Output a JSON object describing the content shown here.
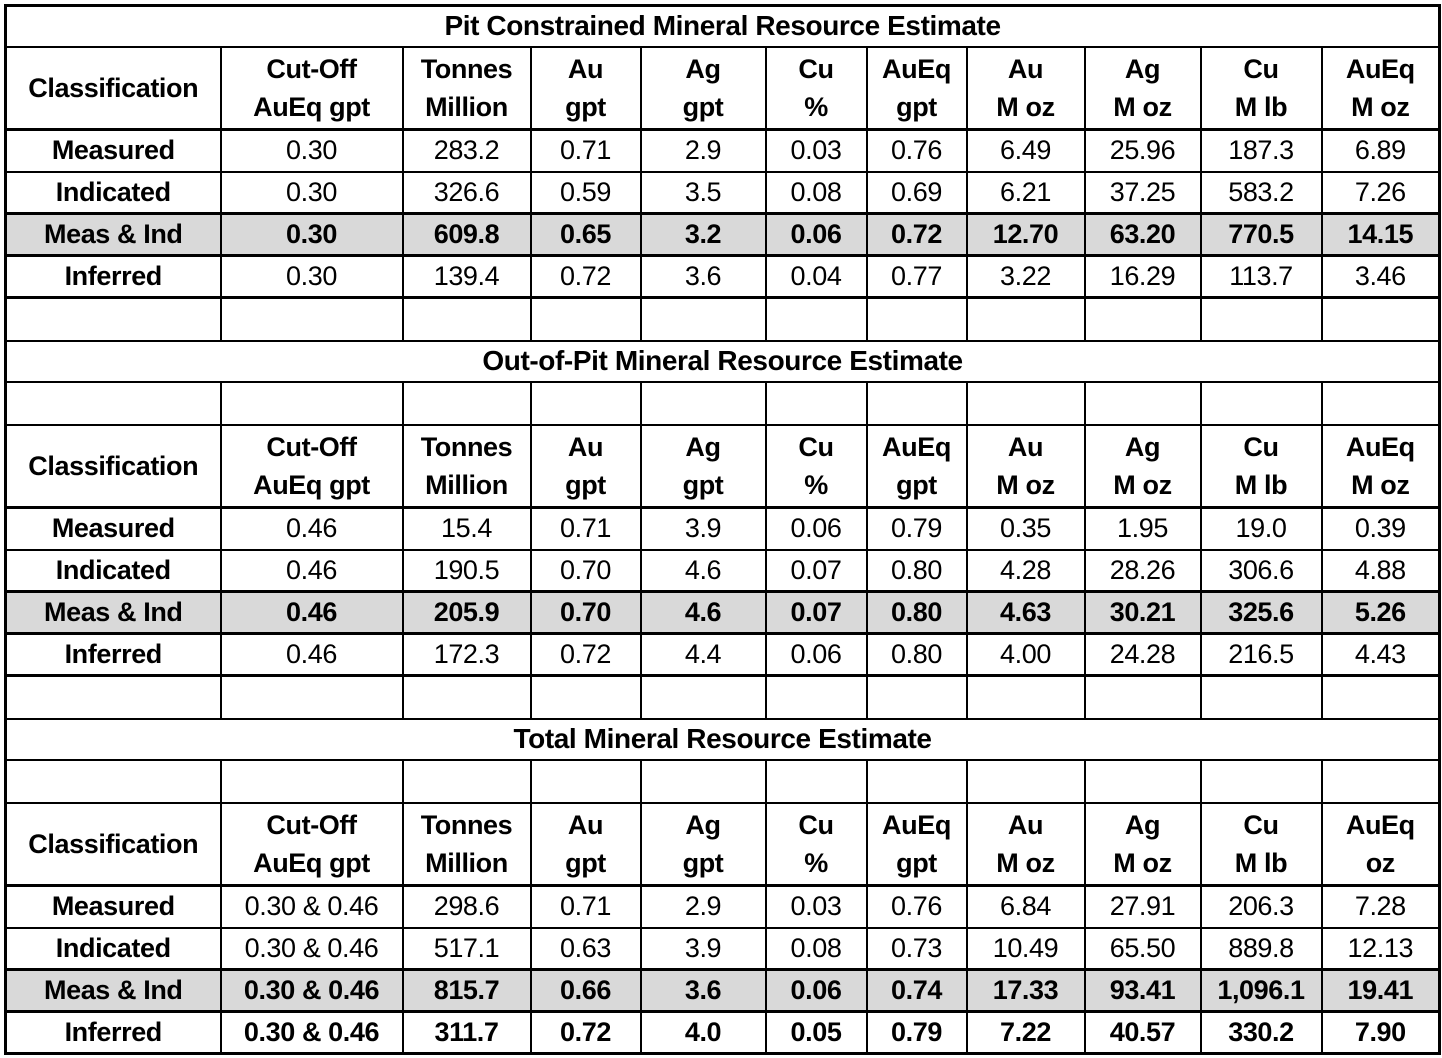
{
  "styles": {
    "background": "#ffffff",
    "grid_color": "#000000",
    "text_color": "#000000",
    "shaded_row_color": "#d9d9d9"
  },
  "tables": [
    {
      "title": "Pit Constrained Mineral Resource Estimate",
      "spacer_before": false,
      "spacer_after_title": false,
      "header": [
        {
          "lines": [
            "Classification"
          ]
        },
        {
          "lines": [
            "Cut-Off",
            "AuEq gpt"
          ]
        },
        {
          "lines": [
            "Tonnes",
            "Million"
          ]
        },
        {
          "lines": [
            "Au",
            "gpt"
          ]
        },
        {
          "lines": [
            "Ag",
            "gpt"
          ]
        },
        {
          "lines": [
            "Cu",
            "%"
          ]
        },
        {
          "lines": [
            "AuEq",
            "gpt"
          ]
        },
        {
          "lines": [
            "Au",
            "M oz"
          ]
        },
        {
          "lines": [
            "Ag",
            "M oz"
          ]
        },
        {
          "lines": [
            "Cu",
            "M lb"
          ]
        },
        {
          "lines": [
            "AuEq",
            "M oz"
          ]
        }
      ],
      "rows": [
        {
          "label": "Measured",
          "values": [
            "0.30",
            "283.2",
            "0.71",
            "2.9",
            "0.03",
            "0.76",
            "6.49",
            "25.96",
            "187.3",
            "6.89"
          ],
          "shaded": false,
          "bold": false
        },
        {
          "label": "Indicated",
          "values": [
            "0.30",
            "326.6",
            "0.59",
            "3.5",
            "0.08",
            "0.69",
            "6.21",
            "37.25",
            "583.2",
            "7.26"
          ],
          "shaded": false,
          "bold": false
        },
        {
          "label": "Meas & Ind",
          "values": [
            "0.30",
            "609.8",
            "0.65",
            "3.2",
            "0.06",
            "0.72",
            "12.70",
            "63.20",
            "770.5",
            "14.15"
          ],
          "shaded": true,
          "bold": true
        },
        {
          "label": "Inferred",
          "values": [
            "0.30",
            "139.4",
            "0.72",
            "3.6",
            "0.04",
            "0.77",
            "3.22",
            "16.29",
            "113.7",
            "3.46"
          ],
          "shaded": false,
          "bold": false
        }
      ]
    },
    {
      "title": "Out-of-Pit Mineral Resource Estimate",
      "spacer_before": true,
      "spacer_after_title": true,
      "header": [
        {
          "lines": [
            "Classification"
          ]
        },
        {
          "lines": [
            "Cut-Off",
            "AuEq gpt"
          ]
        },
        {
          "lines": [
            "Tonnes",
            "Million"
          ]
        },
        {
          "lines": [
            "Au",
            "gpt"
          ]
        },
        {
          "lines": [
            "Ag",
            "gpt"
          ]
        },
        {
          "lines": [
            "Cu",
            "%"
          ]
        },
        {
          "lines": [
            "AuEq",
            "gpt"
          ]
        },
        {
          "lines": [
            "Au",
            "M oz"
          ]
        },
        {
          "lines": [
            "Ag",
            "M oz"
          ]
        },
        {
          "lines": [
            "Cu",
            "M lb"
          ]
        },
        {
          "lines": [
            "AuEq",
            "M oz"
          ]
        }
      ],
      "rows": [
        {
          "label": "Measured",
          "values": [
            "0.46",
            "15.4",
            "0.71",
            "3.9",
            "0.06",
            "0.79",
            "0.35",
            "1.95",
            "19.0",
            "0.39"
          ],
          "shaded": false,
          "bold": false
        },
        {
          "label": "Indicated",
          "values": [
            "0.46",
            "190.5",
            "0.70",
            "4.6",
            "0.07",
            "0.80",
            "4.28",
            "28.26",
            "306.6",
            "4.88"
          ],
          "shaded": false,
          "bold": false
        },
        {
          "label": "Meas & Ind",
          "values": [
            "0.46",
            "205.9",
            "0.70",
            "4.6",
            "0.07",
            "0.80",
            "4.63",
            "30.21",
            "325.6",
            "5.26"
          ],
          "shaded": true,
          "bold": true
        },
        {
          "label": "Inferred",
          "values": [
            "0.46",
            "172.3",
            "0.72",
            "4.4",
            "0.06",
            "0.80",
            "4.00",
            "24.28",
            "216.5",
            "4.43"
          ],
          "shaded": false,
          "bold": false
        }
      ]
    },
    {
      "title": "Total Mineral Resource Estimate",
      "spacer_before": true,
      "spacer_after_title": true,
      "header": [
        {
          "lines": [
            "Classification"
          ]
        },
        {
          "lines": [
            "Cut-Off",
            "AuEq gpt"
          ]
        },
        {
          "lines": [
            "Tonnes",
            "Million"
          ]
        },
        {
          "lines": [
            "Au",
            "gpt"
          ]
        },
        {
          "lines": [
            "Ag",
            "gpt"
          ]
        },
        {
          "lines": [
            "Cu",
            "%"
          ]
        },
        {
          "lines": [
            "AuEq",
            "gpt"
          ]
        },
        {
          "lines": [
            "Au",
            "M oz"
          ]
        },
        {
          "lines": [
            "Ag",
            "M oz"
          ]
        },
        {
          "lines": [
            "Cu",
            "M lb"
          ]
        },
        {
          "lines": [
            "AuEq",
            "oz"
          ]
        }
      ],
      "rows": [
        {
          "label": "Measured",
          "values": [
            "0.30 & 0.46",
            "298.6",
            "0.71",
            "2.9",
            "0.03",
            "0.76",
            "6.84",
            "27.91",
            "206.3",
            "7.28"
          ],
          "shaded": false,
          "bold": false
        },
        {
          "label": "Indicated",
          "values": [
            "0.30 & 0.46",
            "517.1",
            "0.63",
            "3.9",
            "0.08",
            "0.73",
            "10.49",
            "65.50",
            "889.8",
            "12.13"
          ],
          "shaded": false,
          "bold": false
        },
        {
          "label": "Meas & Ind",
          "values": [
            "0.30 & 0.46",
            "815.7",
            "0.66",
            "3.6",
            "0.06",
            "0.74",
            "17.33",
            "93.41",
            "1,096.1",
            "19.41"
          ],
          "shaded": true,
          "bold": true
        },
        {
          "label": "Inferred",
          "values": [
            "0.30 & 0.46",
            "311.7",
            "0.72",
            "4.0",
            "0.05",
            "0.79",
            "7.22",
            "40.57",
            "330.2",
            "7.90"
          ],
          "shaded": false,
          "bold": true
        }
      ]
    }
  ]
}
